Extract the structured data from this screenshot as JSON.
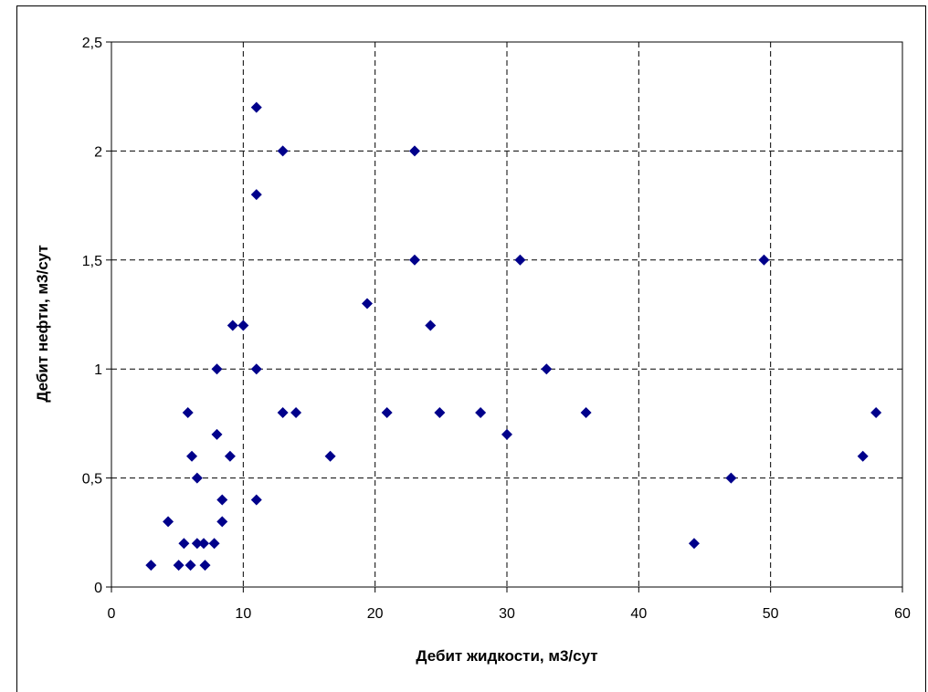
{
  "chart_data": {
    "type": "scatter",
    "xlabel": "Дебит жидкости, м3/сут",
    "ylabel": "Дебит нефти, м3/сут",
    "xlim": [
      0,
      60
    ],
    "ylim": [
      0,
      2.5
    ],
    "x_ticks": [
      "0",
      "10",
      "20",
      "30",
      "40",
      "50",
      "60"
    ],
    "y_ticks": [
      "0",
      "0,5",
      "1",
      "1,5",
      "2",
      "2,5"
    ],
    "grid": "dashed",
    "marker": "diamond",
    "marker_color": "#00008B",
    "points": [
      {
        "x": 3,
        "y": 0.1
      },
      {
        "x": 4.3,
        "y": 0.3
      },
      {
        "x": 5.1,
        "y": 0.1
      },
      {
        "x": 5.5,
        "y": 0.2
      },
      {
        "x": 5.8,
        "y": 0.8
      },
      {
        "x": 6,
        "y": 0.1
      },
      {
        "x": 6.1,
        "y": 0.6
      },
      {
        "x": 6.5,
        "y": 0.2
      },
      {
        "x": 6.5,
        "y": 0.5
      },
      {
        "x": 7,
        "y": 0.2
      },
      {
        "x": 7.1,
        "y": 0.1
      },
      {
        "x": 7.8,
        "y": 0.2
      },
      {
        "x": 8,
        "y": 1
      },
      {
        "x": 8,
        "y": 0.7
      },
      {
        "x": 8.4,
        "y": 0.4
      },
      {
        "x": 8.4,
        "y": 0.3
      },
      {
        "x": 9,
        "y": 0.6
      },
      {
        "x": 9.2,
        "y": 1.2
      },
      {
        "x": 10,
        "y": 1.2
      },
      {
        "x": 11,
        "y": 2.2
      },
      {
        "x": 11,
        "y": 1.8
      },
      {
        "x": 11,
        "y": 1
      },
      {
        "x": 11,
        "y": 0.4
      },
      {
        "x": 13,
        "y": 2
      },
      {
        "x": 13,
        "y": 0.8
      },
      {
        "x": 14,
        "y": 0.8
      },
      {
        "x": 16.6,
        "y": 0.6
      },
      {
        "x": 19.4,
        "y": 1.3
      },
      {
        "x": 20.9,
        "y": 0.8
      },
      {
        "x": 23,
        "y": 2
      },
      {
        "x": 23,
        "y": 1.5
      },
      {
        "x": 24.2,
        "y": 1.2
      },
      {
        "x": 24.9,
        "y": 0.8
      },
      {
        "x": 28,
        "y": 0.8
      },
      {
        "x": 30,
        "y": 0.7
      },
      {
        "x": 31,
        "y": 1.5
      },
      {
        "x": 33,
        "y": 1
      },
      {
        "x": 36,
        "y": 0.8
      },
      {
        "x": 44.2,
        "y": 0.2
      },
      {
        "x": 47,
        "y": 0.5
      },
      {
        "x": 49.5,
        "y": 1.5
      },
      {
        "x": 57,
        "y": 0.6
      },
      {
        "x": 58,
        "y": 0.8
      }
    ]
  }
}
